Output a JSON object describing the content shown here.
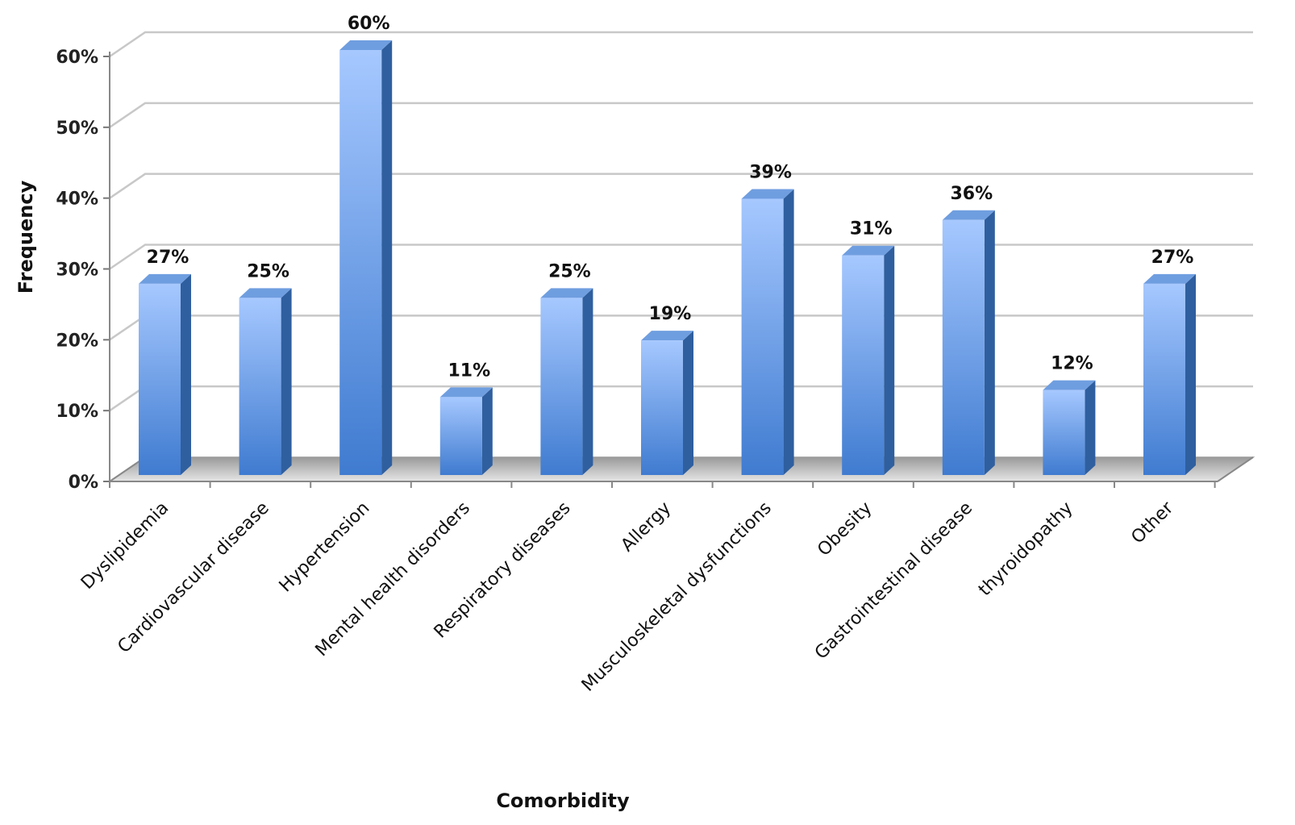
{
  "chart_data": {
    "type": "bar",
    "title": "",
    "xlabel": "Comorbidity",
    "ylabel": "Frequency",
    "categories": [
      "Dyslipidemia",
      "Cardiovascular disease",
      "Hypertension",
      "Mental health disorders",
      "Respiratory diseases",
      "Allergy",
      "Musculoskeletal dysfunctions",
      "Obesity",
      "Gastrointestinal disease",
      "thyroidopathy",
      "Other"
    ],
    "values": [
      27,
      25,
      60,
      11,
      25,
      19,
      39,
      31,
      36,
      12,
      27
    ],
    "data_labels": [
      "27%",
      "25%",
      "60%",
      "11%",
      "25%",
      "19%",
      "39%",
      "31%",
      "36%",
      "12%",
      "27%"
    ],
    "y_ticks": [
      "0%",
      "10%",
      "20%",
      "30%",
      "40%",
      "50%",
      "60%"
    ],
    "ylim": [
      0,
      60
    ],
    "grid": true,
    "legend": "none",
    "style": "3d-column",
    "colors": {
      "bar_light": "#a6c8ff",
      "bar_dark": "#3f7bd0",
      "bar_side": "#2f5f9f",
      "bar_top": "#6f9ee0",
      "grid": "#c8c8c8"
    }
  }
}
